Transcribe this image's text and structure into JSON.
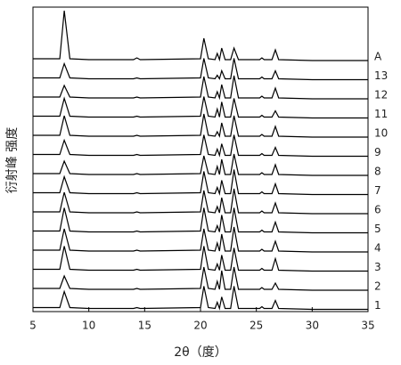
{
  "chart_data": {
    "type": "line",
    "x_label": "2θ（度）",
    "y_label": "衍射峰 强度",
    "x": [
      5,
      7.4,
      7.8,
      8.3,
      10,
      14,
      14.3,
      14.6,
      20.0,
      20.3,
      20.7,
      21.3,
      21.5,
      21.7,
      21.9,
      22.2,
      22.7,
      23.0,
      23.4,
      25.3,
      25.5,
      25.7,
      26.4,
      26.7,
      27.0,
      30,
      35
    ],
    "xlim": [
      5,
      35
    ],
    "xticks": [
      5,
      10,
      15,
      20,
      25,
      30,
      35
    ],
    "series": [
      {
        "name": "A",
        "color": "#000000",
        "values": [
          2,
          2,
          56,
          2,
          1,
          1,
          3,
          1,
          2,
          25,
          2,
          1,
          8,
          1,
          14,
          1,
          1,
          14,
          1,
          1,
          3,
          1,
          1,
          12,
          1,
          0,
          0
        ]
      },
      {
        "name": "13",
        "color": "#000000",
        "values": [
          2,
          2,
          18,
          2,
          1,
          1,
          2,
          1,
          2,
          24,
          2,
          1,
          5,
          1,
          10,
          1,
          1,
          24,
          1,
          1,
          3,
          1,
          1,
          10,
          1,
          0,
          0
        ]
      },
      {
        "name": "12",
        "color": "#000000",
        "values": [
          2,
          2,
          15,
          2,
          1,
          1,
          2,
          1,
          2,
          25,
          2,
          1,
          8,
          1,
          16,
          1,
          1,
          26,
          1,
          1,
          3,
          1,
          1,
          12,
          1,
          0,
          0
        ]
      },
      {
        "name": "11",
        "color": "#000000",
        "values": [
          2,
          2,
          22,
          2,
          1,
          1,
          2,
          1,
          2,
          24,
          2,
          1,
          10,
          1,
          18,
          1,
          1,
          22,
          1,
          1,
          3,
          1,
          1,
          8,
          1,
          0,
          0
        ]
      },
      {
        "name": "10",
        "color": "#000000",
        "values": [
          2,
          2,
          24,
          2,
          1,
          1,
          2,
          1,
          2,
          26,
          2,
          1,
          6,
          1,
          16,
          1,
          1,
          24,
          1,
          1,
          3,
          1,
          1,
          12,
          1,
          0,
          0
        ]
      },
      {
        "name": "9",
        "color": "#000000",
        "values": [
          2,
          2,
          18,
          2,
          1,
          1,
          2,
          1,
          2,
          24,
          2,
          1,
          8,
          1,
          14,
          1,
          1,
          24,
          1,
          1,
          3,
          1,
          1,
          10,
          1,
          0,
          0
        ]
      },
      {
        "name": "8",
        "color": "#000000",
        "values": [
          2,
          2,
          16,
          2,
          1,
          1,
          2,
          1,
          2,
          22,
          2,
          1,
          10,
          1,
          18,
          1,
          1,
          24,
          1,
          1,
          3,
          1,
          1,
          12,
          1,
          0,
          0
        ]
      },
      {
        "name": "7",
        "color": "#000000",
        "values": [
          2,
          2,
          20,
          2,
          1,
          1,
          2,
          1,
          2,
          26,
          2,
          1,
          8,
          1,
          16,
          1,
          1,
          28,
          1,
          1,
          3,
          1,
          1,
          12,
          1,
          0,
          0
        ]
      },
      {
        "name": "6",
        "color": "#000000",
        "values": [
          2,
          2,
          24,
          2,
          1,
          1,
          2,
          1,
          2,
          26,
          2,
          1,
          8,
          1,
          18,
          1,
          1,
          28,
          1,
          1,
          3,
          1,
          1,
          12,
          1,
          0,
          0
        ]
      },
      {
        "name": "5",
        "color": "#000000",
        "values": [
          2,
          2,
          28,
          2,
          1,
          1,
          2,
          1,
          2,
          28,
          2,
          1,
          8,
          1,
          20,
          1,
          1,
          28,
          1,
          1,
          3,
          1,
          1,
          12,
          1,
          0,
          0
        ]
      },
      {
        "name": "4",
        "color": "#000000",
        "values": [
          2,
          2,
          26,
          2,
          1,
          1,
          2,
          1,
          2,
          26,
          2,
          1,
          10,
          1,
          20,
          1,
          1,
          28,
          1,
          1,
          3,
          1,
          1,
          12,
          1,
          0,
          0
        ]
      },
      {
        "name": "3",
        "color": "#000000",
        "values": [
          2,
          2,
          28,
          2,
          1,
          1,
          2,
          1,
          2,
          28,
          2,
          1,
          8,
          1,
          18,
          1,
          1,
          26,
          1,
          1,
          3,
          1,
          1,
          14,
          1,
          0,
          0
        ]
      },
      {
        "name": "2",
        "color": "#000000",
        "values": [
          2,
          2,
          16,
          2,
          1,
          1,
          2,
          1,
          2,
          26,
          2,
          1,
          10,
          1,
          22,
          1,
          1,
          26,
          1,
          1,
          3,
          1,
          1,
          8,
          1,
          0,
          0
        ]
      },
      {
        "name": "1",
        "color": "#000000",
        "values": [
          2,
          2,
          20,
          2,
          1,
          1,
          2,
          1,
          2,
          26,
          2,
          1,
          8,
          1,
          14,
          1,
          1,
          26,
          1,
          1,
          3,
          1,
          1,
          10,
          1,
          0,
          0
        ]
      }
    ]
  }
}
